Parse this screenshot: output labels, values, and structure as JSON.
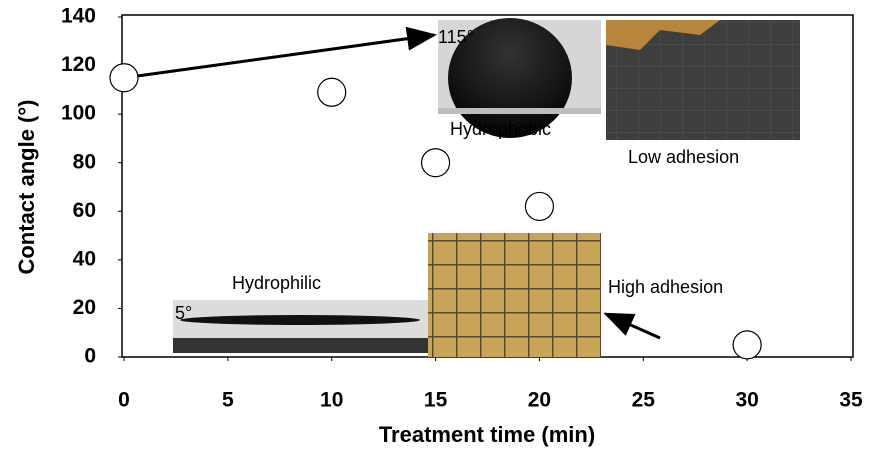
{
  "chart_data": {
    "type": "scatter",
    "x_label": "Treatment time (min)",
    "y_label": "Contact angle (°)",
    "series": [
      {
        "x": [
          0,
          10,
          15,
          20,
          30
        ],
        "values": [
          115,
          109,
          80,
          62,
          5
        ],
        "color": "#ffffff"
      }
    ],
    "xlim": [
      0,
      35
    ],
    "xticks": [
      0,
      5,
      10,
      15,
      20,
      25,
      30,
      35
    ],
    "ylim": [
      0,
      140
    ],
    "yticks": [
      0,
      20,
      40,
      60,
      80,
      100,
      120,
      140
    ],
    "grid": false,
    "annotations": [
      "115°",
      "Hydrophobic",
      "Low adhesion",
      "Hydrophilic",
      "5°",
      "High adhesion"
    ]
  }
}
